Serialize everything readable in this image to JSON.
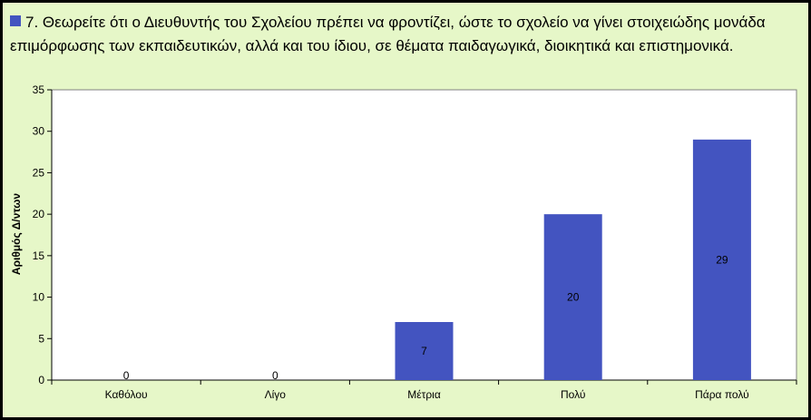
{
  "chart_data": {
    "type": "bar",
    "title": "7.  Θεωρείτε ότι  ο Διευθυντής του Σχολείου πρέπει να φροντίζει,  ώστε το σχολείο να γίνει στοιχειώδης μονάδα επιμόρφωσης των εκπαιδευτικών,  αλλά και του ίδιου,  σε θέματα παιδαγωγικά, διοικητικά  και  επιστημονικά.",
    "ylabel": "Αριθμός Δ/ντων",
    "xlabel": "",
    "categories": [
      "Καθόλου",
      "Λίγο",
      "Μέτρια",
      "Πολύ",
      "Πάρα πολύ"
    ],
    "values": [
      0,
      0,
      7,
      20,
      29
    ],
    "ylim": [
      0,
      35
    ],
    "yticks": [
      "0",
      "5",
      "10",
      "15",
      "20",
      "25",
      "30",
      "35"
    ],
    "bar_color": "#4354c0",
    "background_color": "#e6f7c8",
    "grid": false,
    "legend_position": "top"
  }
}
